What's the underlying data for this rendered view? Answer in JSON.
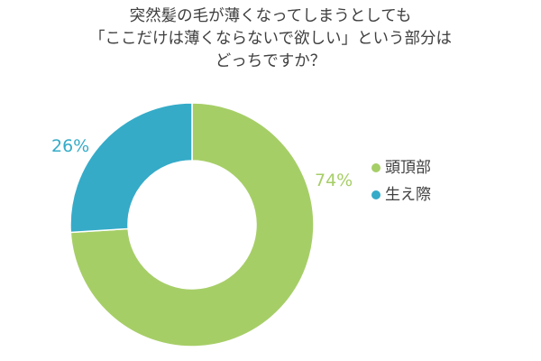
{
  "chart_data": {
    "type": "pie",
    "title": [
      "突然髪の毛が薄くなってしまうとしても",
      "「ここだけは薄くならないで欲しい」という部分は",
      "どっちですか？"
    ],
    "slices": [
      {
        "label": "頭頂部",
        "value": 74,
        "value_label": "74%",
        "color": "#a6ce67"
      },
      {
        "label": "生え際",
        "value": 26,
        "value_label": "26%",
        "color": "#35abc8"
      }
    ],
    "start_angle_deg": 0,
    "direction": "clockwise",
    "legend_position": "right"
  }
}
